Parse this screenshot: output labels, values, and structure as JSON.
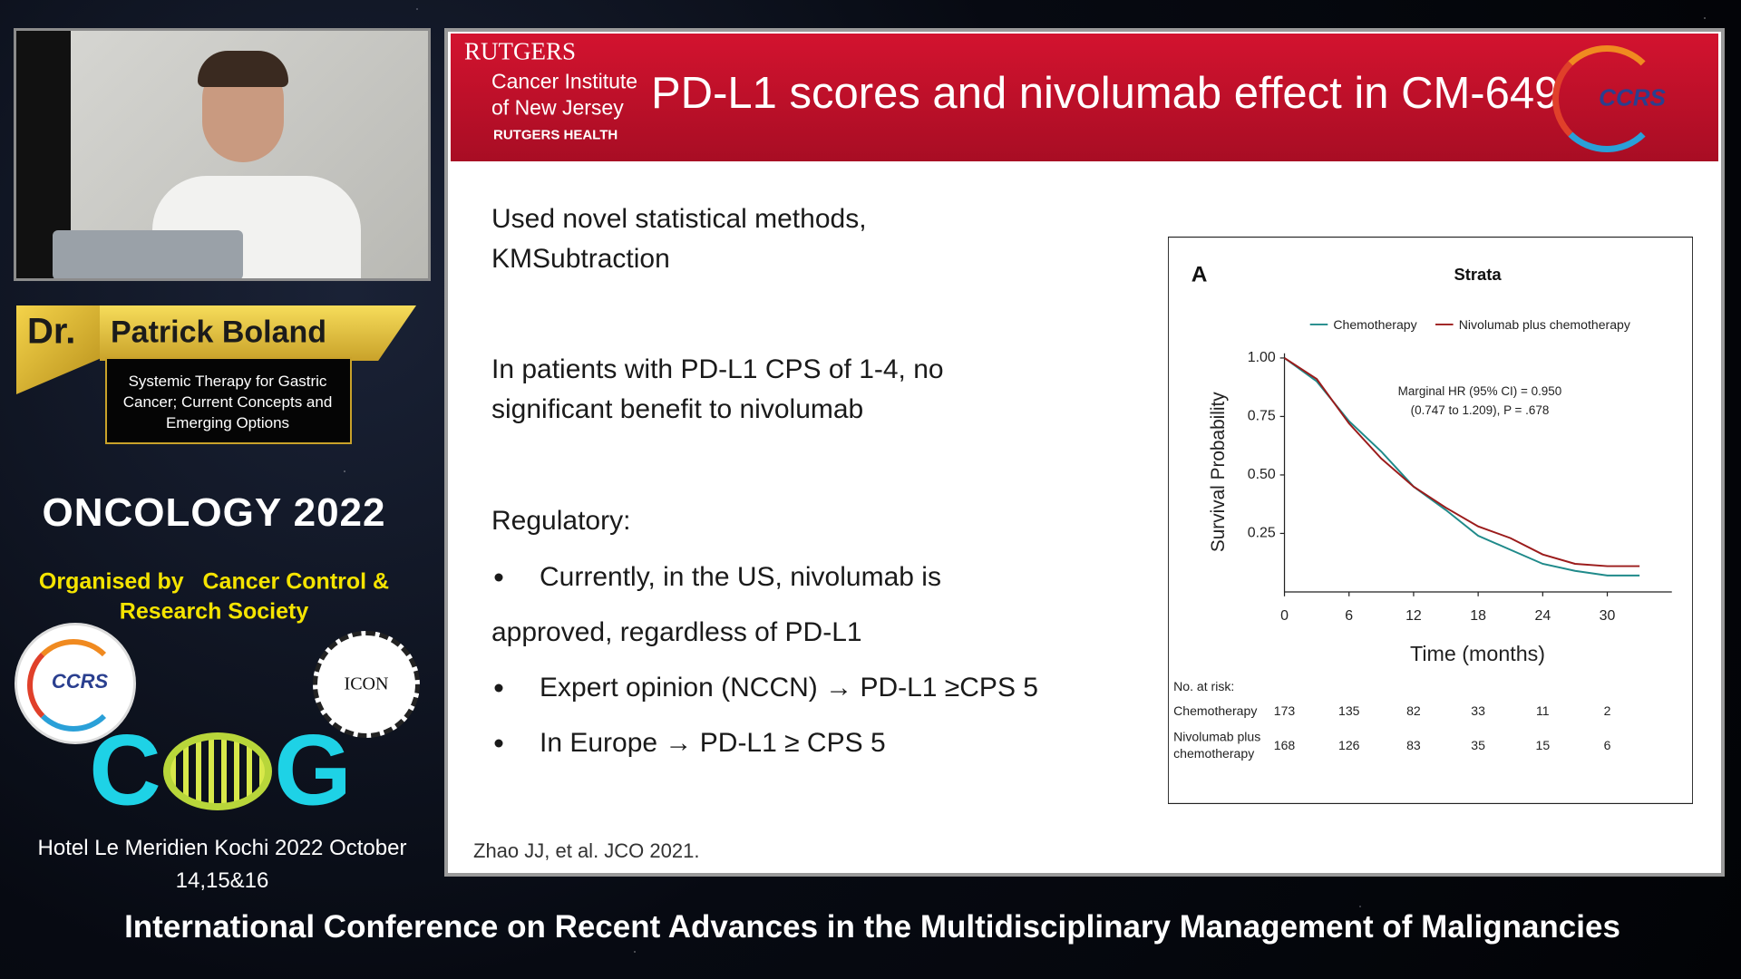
{
  "speaker_panel": {
    "prefix": "Dr.",
    "name": "Patrick Boland",
    "talk_title": [
      "Systemic Therapy for Gastric",
      "Cancer; Current Concepts and",
      "Emerging Options"
    ]
  },
  "event": {
    "name": "ONCOLOGY 2022",
    "organised_by": "Organised by",
    "organiser": [
      "Cancer Control &",
      "Research Society"
    ],
    "logos": [
      "CCRS",
      "ICON"
    ],
    "cog_logo": [
      "C",
      "G"
    ],
    "venue": [
      "Hotel Le Meridien  Kochi  2022 October",
      "14,15&16"
    ]
  },
  "banner": "International Conference on Recent Advances in the Multidisciplinary Management of Malignancies",
  "slide": {
    "institution": {
      "name": "RUTGERS",
      "unit": [
        "Cancer Institute",
        "of New Jersey"
      ],
      "brand": "RUTGERS HEALTH"
    },
    "title": "PD-L1 scores and nivolumab effect in CM-649",
    "logo": "CCRS",
    "paragraphs": [
      [
        "Used novel statistical methods,",
        "KMSubtraction"
      ],
      [
        "In patients with PD-L1 CPS of 1-4, no",
        "significant benefit to nivolumab"
      ],
      [
        "Regulatory:"
      ]
    ],
    "bullets": [
      [
        "Currently, in the US, nivolumab is",
        "approved, regardless of PD-L1"
      ],
      [
        "Expert opinion (NCCN) → PD-L1 ≥CPS 5"
      ],
      [
        "In Europe → PD-L1 ≥ CPS 5"
      ]
    ],
    "citation": "Zhao JJ, et al. JCO 2021."
  },
  "chart_data": {
    "type": "line",
    "panel_label": "A",
    "title": "Strata",
    "x_label": "Time (months)",
    "y_label": "Survival Probability",
    "x": [
      0,
      3,
      6,
      9,
      12,
      15,
      18,
      21,
      24,
      27,
      30,
      33
    ],
    "series": [
      {
        "name": "Chemotherapy",
        "color": "#1f8a8a",
        "values": [
          1.0,
          0.9,
          0.73,
          0.6,
          0.45,
          0.35,
          0.24,
          0.18,
          0.12,
          0.09,
          0.07,
          0.07
        ]
      },
      {
        "name": "Nivolumab plus chemotherapy",
        "color": "#9b1b1b",
        "values": [
          1.0,
          0.91,
          0.72,
          0.57,
          0.45,
          0.36,
          0.28,
          0.23,
          0.16,
          0.12,
          0.11,
          0.11
        ]
      }
    ],
    "xlim": [
      0,
      36
    ],
    "ylim": [
      0,
      1.02
    ],
    "xticks": [
      0,
      6,
      12,
      18,
      24,
      30
    ],
    "yticks": [
      {
        "value": 0.25,
        "label": "0.25"
      },
      {
        "value": 0.5,
        "label": "0.50"
      },
      {
        "value": 0.75,
        "label": "0.75"
      },
      {
        "value": 1.0,
        "label": "1.00"
      }
    ],
    "annotation": [
      "Marginal HR (95% CI) = 0.950",
      "(0.747 to 1.209), P = .678"
    ],
    "risk_table": {
      "title": "No. at risk:",
      "rows": [
        {
          "label": [
            "Chemotherapy"
          ],
          "values": [
            173,
            135,
            82,
            33,
            11,
            2
          ]
        },
        {
          "label": [
            "Nivolumab plus",
            "chemotherapy"
          ],
          "values": [
            168,
            126,
            83,
            35,
            15,
            6
          ]
        }
      ]
    }
  }
}
